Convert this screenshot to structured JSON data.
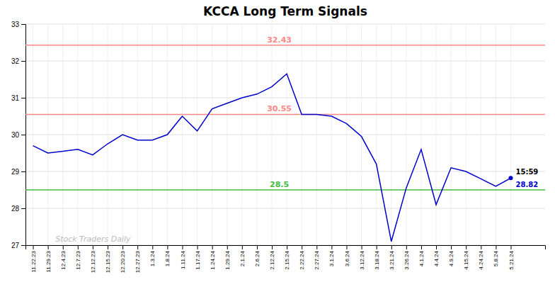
{
  "chart_data": {
    "type": "line",
    "title": "KCCA Long Term Signals",
    "categories": [
      "11.22.23",
      "11.29.23",
      "12.4.23",
      "12.7.23",
      "12.12.23",
      "12.15.23",
      "12.20.23",
      "12.27.23",
      "1.3.24",
      "1.8.24",
      "1.11.24",
      "1.17.24",
      "1.24.24",
      "1.29.24",
      "2.1.24",
      "2.6.24",
      "2.12.24",
      "2.15.24",
      "2.22.24",
      "2.27.24",
      "3.1.24",
      "3.6.24",
      "3.12.24",
      "3.18.24",
      "3.21.24",
      "3.26.24",
      "4.1.24",
      "4.4.24",
      "4.9.24",
      "4.15.24",
      "4.24.24",
      "5.8.24",
      "5.21.24"
    ],
    "values": [
      29.7,
      29.5,
      29.55,
      29.6,
      29.45,
      29.75,
      30.0,
      29.85,
      29.85,
      30.0,
      30.5,
      30.1,
      30.7,
      30.85,
      31.0,
      31.1,
      31.3,
      31.65,
      30.55,
      30.55,
      30.5,
      30.3,
      29.95,
      29.2,
      27.1,
      28.55,
      29.6,
      28.1,
      29.1,
      29.0,
      28.8,
      28.6,
      28.82
    ],
    "color": "#0000cc",
    "ylim": [
      27,
      33
    ],
    "yticks": [
      27,
      28,
      29,
      30,
      31,
      32,
      33
    ],
    "grid": true,
    "reference_lines": [
      {
        "value": 32.43,
        "label": "32.43",
        "color": "#ff8888"
      },
      {
        "value": 30.55,
        "label": "30.55",
        "color": "#ff8888"
      },
      {
        "value": 28.5,
        "label": "28.5",
        "color": "#44bb44"
      }
    ],
    "last_time_label": "15:59",
    "watermark": "Stock Traders Daily"
  }
}
